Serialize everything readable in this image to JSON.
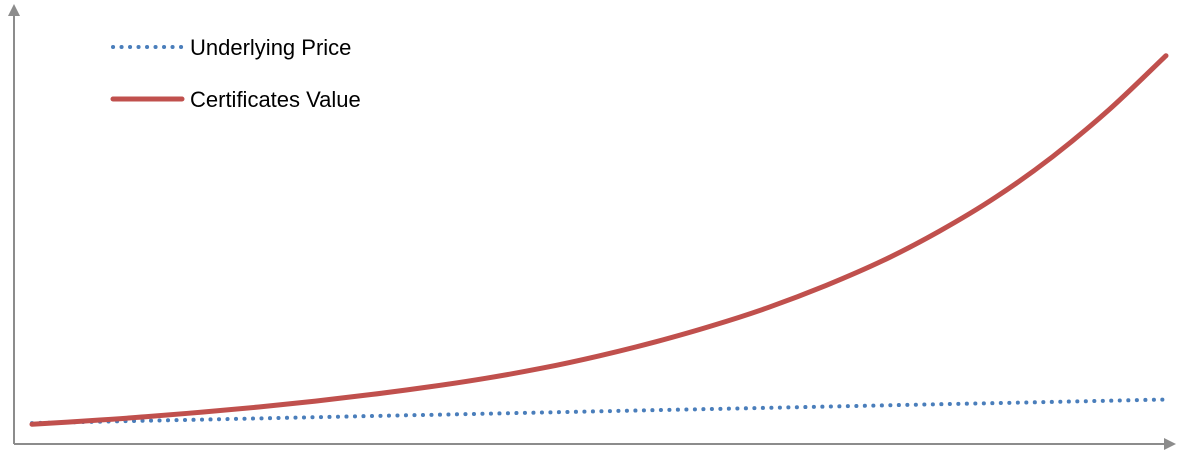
{
  "chart_data": {
    "type": "line",
    "title": "",
    "xlabel": "",
    "ylabel": "",
    "axis_color": "#8c8c8c",
    "grid": false,
    "legend_placement": "top-left",
    "x": [
      0,
      1,
      2,
      3,
      4,
      5,
      6,
      7,
      8,
      9,
      10,
      11,
      12,
      13,
      14,
      15,
      16,
      17,
      18,
      19,
      20
    ],
    "xlim": [
      0,
      20
    ],
    "ylim": [
      0,
      100
    ],
    "series": [
      {
        "name": "Underlying Price",
        "color": "#4a7ebb",
        "style": "dotted",
        "values": [
          1.5,
          1.8,
          2.1,
          2.4,
          2.7,
          3.0,
          3.3,
          3.6,
          3.9,
          4.2,
          4.5,
          4.8,
          5.1,
          5.4,
          5.7,
          6.0,
          6.3,
          6.6,
          6.9,
          7.2,
          7.5
        ]
      },
      {
        "name": "Certificates Value",
        "color": "#c0504d",
        "style": "solid",
        "values": [
          1.2,
          2.1,
          3.1,
          4.3,
          5.6,
          7.1,
          8.8,
          10.7,
          12.9,
          15.5,
          18.6,
          22.2,
          26.3,
          31.0,
          36.5,
          42.8,
          50.3,
          59.0,
          69.3,
          81.3,
          95.0
        ]
      }
    ]
  }
}
